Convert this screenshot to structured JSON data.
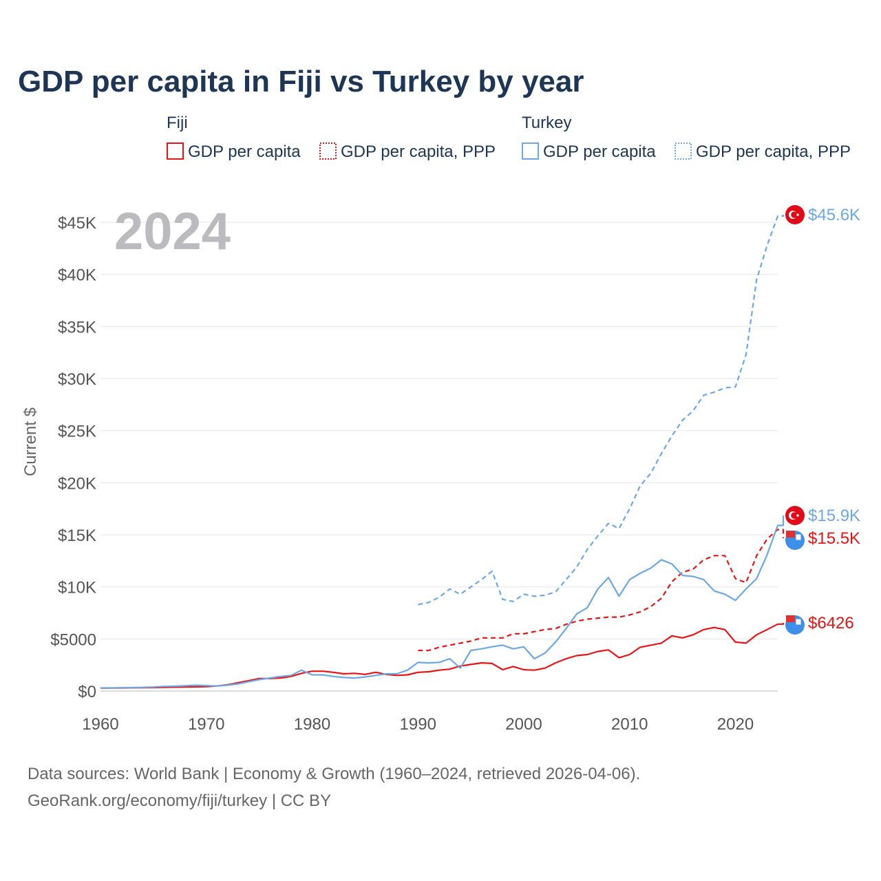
{
  "chart_data": {
    "type": "line",
    "title": "GDP per capita in Fiji vs Turkey by year",
    "ylabel": "Current $",
    "xlabel": "",
    "xlim": [
      1960,
      2024
    ],
    "ylim": [
      0,
      45000
    ],
    "x_ticks": [
      1960,
      1970,
      1980,
      1990,
      2000,
      2010,
      2020
    ],
    "x_tick_labels": [
      "1960",
      "1970",
      "1980",
      "1990",
      "2000",
      "2010",
      "2020"
    ],
    "y_ticks": [
      0,
      5000,
      10000,
      15000,
      20000,
      25000,
      30000,
      35000,
      40000,
      45000
    ],
    "y_tick_labels": [
      "$0",
      "$5000",
      "$10K",
      "$15K",
      "$20K",
      "$25K",
      "$30K",
      "$35K",
      "$40K",
      "$45K"
    ],
    "grid": true,
    "year_overlay": "2024",
    "legend": {
      "placement": "top",
      "groups": [
        {
          "name": "Fiji",
          "entries": [
            "GDP per capita",
            "GDP per capita, PPP"
          ]
        },
        {
          "name": "Turkey",
          "entries": [
            "GDP per capita",
            "GDP per capita, PPP"
          ]
        }
      ]
    },
    "series": [
      {
        "name": "Fiji GDP per capita",
        "country": "Fiji",
        "color": "#ee1111",
        "dash": false,
        "start_year": 1960,
        "end_label": "$6426",
        "values": [
          280,
          290,
          300,
          310,
          320,
          330,
          350,
          370,
          380,
          400,
          420,
          480,
          600,
          800,
          1000,
          1200,
          1200,
          1250,
          1400,
          1700,
          1900,
          1900,
          1800,
          1650,
          1700,
          1600,
          1800,
          1600,
          1500,
          1550,
          1800,
          1850,
          2000,
          2100,
          2400,
          2550,
          2700,
          2650,
          2050,
          2350,
          2050,
          2000,
          2200,
          2700,
          3100,
          3400,
          3500,
          3800,
          3950,
          3200,
          3500,
          4200,
          4400,
          4600,
          5300,
          5100,
          5400,
          5900,
          6100,
          5900,
          4700,
          4600,
          5400,
          5900,
          6426
        ]
      },
      {
        "name": "Fiji GDP per capita, PPP",
        "country": "Fiji",
        "color": "#ee1111",
        "dash": true,
        "start_year": 1990,
        "end_label": "$15.5K",
        "values": [
          3900,
          3900,
          4200,
          4400,
          4600,
          4800,
          5100,
          5100,
          5100,
          5500,
          5500,
          5700,
          5900,
          6000,
          6400,
          6700,
          6900,
          7000,
          7100,
          7100,
          7300,
          7600,
          8100,
          8900,
          10500,
          11400,
          11700,
          12600,
          13000,
          13000,
          10800,
          10400,
          13000,
          14600,
          15500
        ]
      },
      {
        "name": "Turkey GDP per capita",
        "country": "Turkey",
        "color": "#6aa8e8",
        "dash": false,
        "start_year": 1960,
        "end_label": "$15.9K",
        "values": [
          300,
          300,
          320,
          330,
          350,
          380,
          440,
          460,
          500,
          560,
          520,
          480,
          560,
          690,
          900,
          1100,
          1250,
          1400,
          1500,
          2000,
          1550,
          1550,
          1400,
          1300,
          1250,
          1350,
          1500,
          1650,
          1650,
          2000,
          2750,
          2700,
          2750,
          3100,
          2200,
          3900,
          4050,
          4250,
          4400,
          4050,
          4250,
          3100,
          3650,
          4700,
          6000,
          7400,
          8000,
          9800,
          10900,
          9100,
          10700,
          11300,
          11800,
          12600,
          12200,
          11100,
          11000,
          10700,
          9600,
          9300,
          8700,
          9800,
          10800,
          13100,
          15900
        ]
      },
      {
        "name": "Turkey GDP per capita, PPP",
        "country": "Turkey",
        "color": "#6aa8e8",
        "dash": true,
        "start_year": 1990,
        "end_label": "$45.6K",
        "values": [
          8300,
          8500,
          9000,
          9800,
          9300,
          10000,
          10700,
          11500,
          8800,
          8600,
          9300,
          9100,
          9200,
          9500,
          10700,
          11900,
          13600,
          14900,
          16100,
          15600,
          17500,
          19700,
          20900,
          22800,
          24500,
          26000,
          26900,
          28400,
          28700,
          29100,
          29200,
          32300,
          39500,
          42800,
          45600
        ]
      }
    ],
    "source_lines": [
      "Data sources: World Bank | Economy & Growth (1960–2024, retrieved 2026-04-06).",
      "GeoRank.org/economy/fiji/turkey | CC BY"
    ]
  }
}
